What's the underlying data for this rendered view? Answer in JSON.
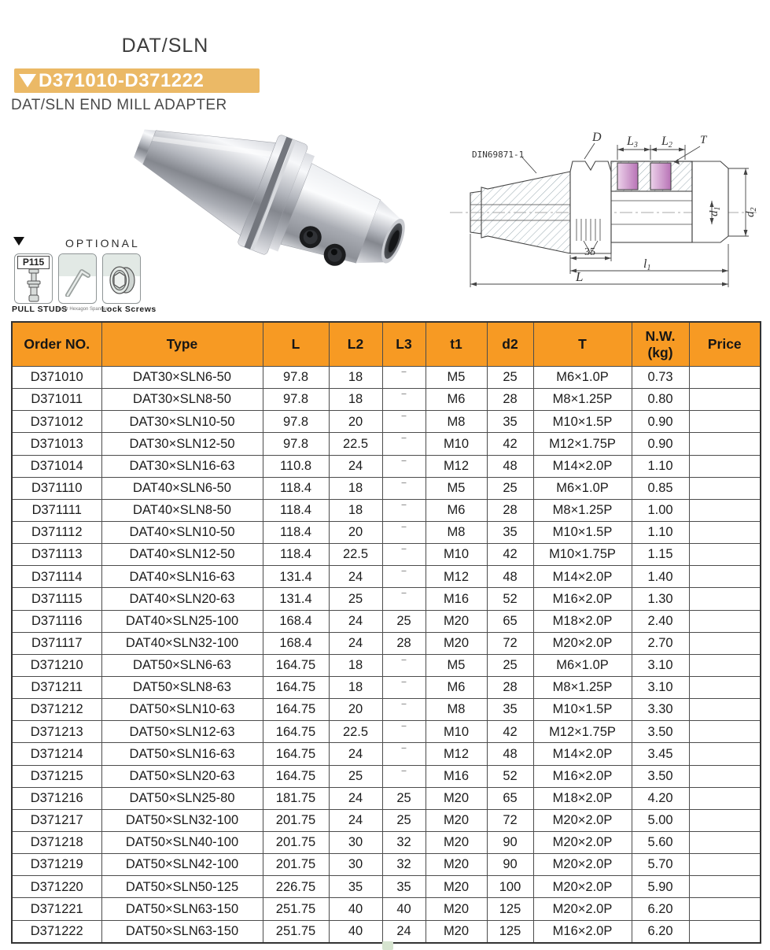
{
  "page": {
    "title": "DAT/SLN",
    "range_badge": "D371010-D371222",
    "subtitle": "DAT/SLN END MILL ADAPTER"
  },
  "optional": {
    "label": "OPTIONAL",
    "items": [
      {
        "code": "P115",
        "caption": "PULL  STUDS",
        "icon": "pull-stud-icon"
      },
      {
        "caption": "Inner Hexagon Spanner",
        "icon": "hex-wrench-icon"
      },
      {
        "caption": "Lock Screws",
        "icon": "lock-screw-icon"
      }
    ]
  },
  "diagram": {
    "standard": "DIN69871-1",
    "label_d": "D",
    "label_l3": {
      "base": "L",
      "sub": "3"
    },
    "label_l2": {
      "base": "L",
      "sub": "2"
    },
    "label_t": "T",
    "label_d1": {
      "base": "d",
      "sub": "1"
    },
    "label_d2": {
      "base": "d",
      "sub": "2"
    },
    "label_35": "35",
    "label_l1": {
      "base": "l",
      "sub": "1"
    },
    "label_l": "L"
  },
  "colors": {
    "header_orange": "#F79A23",
    "badge_orange": "#EBB966",
    "slot_pink": "#C283C0"
  },
  "table": {
    "columns": [
      "Order NO.",
      "Type",
      "L",
      "L2",
      "L3",
      "t1",
      "d2",
      "T",
      "N.W.\n(kg)",
      "Price"
    ],
    "column_keys": [
      "order-no",
      "type",
      "l",
      "l2",
      "l3",
      "t1",
      "d2",
      "t",
      "nw-kg",
      "price"
    ],
    "rows": [
      [
        "D371010",
        "DAT30×SLN6-50",
        "97.8",
        "18",
        "‾",
        "M5",
        "25",
        "M6×1.0P",
        "0.73",
        ""
      ],
      [
        "D371011",
        "DAT30×SLN8-50",
        "97.8",
        "18",
        "‾",
        "M6",
        "28",
        "M8×1.25P",
        "0.80",
        ""
      ],
      [
        "D371012",
        "DAT30×SLN10-50",
        "97.8",
        "20",
        "‾",
        "M8",
        "35",
        "M10×1.5P",
        "0.90",
        ""
      ],
      [
        "D371013",
        "DAT30×SLN12-50",
        "97.8",
        "22.5",
        "‾",
        "M10",
        "42",
        "M12×1.75P",
        "0.90",
        ""
      ],
      [
        "D371014",
        "DAT30×SLN16-63",
        "110.8",
        "24",
        "‾",
        "M12",
        "48",
        "M14×2.0P",
        "1.10",
        ""
      ],
      [
        "D371110",
        "DAT40×SLN6-50",
        "118.4",
        "18",
        "‾",
        "M5",
        "25",
        "M6×1.0P",
        "0.85",
        ""
      ],
      [
        "D371111",
        "DAT40×SLN8-50",
        "118.4",
        "18",
        "‾",
        "M6",
        "28",
        "M8×1.25P",
        "1.00",
        ""
      ],
      [
        "D371112",
        "DAT40×SLN10-50",
        "118.4",
        "20",
        "‾",
        "M8",
        "35",
        "M10×1.5P",
        "1.10",
        ""
      ],
      [
        "D371113",
        "DAT40×SLN12-50",
        "118.4",
        "22.5",
        "‾",
        "M10",
        "42",
        "M10×1.75P",
        "1.15",
        ""
      ],
      [
        "D371114",
        "DAT40×SLN16-63",
        "131.4",
        "24",
        "‾",
        "M12",
        "48",
        "M14×2.0P",
        "1.40",
        ""
      ],
      [
        "D371115",
        "DAT40×SLN20-63",
        "131.4",
        "25",
        "‾",
        "M16",
        "52",
        "M16×2.0P",
        "1.30",
        ""
      ],
      [
        "D371116",
        "DAT40×SLN25-100",
        "168.4",
        "24",
        "25",
        "M20",
        "65",
        "M18×2.0P",
        "2.40",
        ""
      ],
      [
        "D371117",
        "DAT40×SLN32-100",
        "168.4",
        "24",
        "28",
        "M20",
        "72",
        "M20×2.0P",
        "2.70",
        ""
      ],
      [
        "D371210",
        "DAT50×SLN6-63",
        "164.75",
        "18",
        "‾",
        "M5",
        "25",
        "M6×1.0P",
        "3.10",
        ""
      ],
      [
        "D371211",
        "DAT50×SLN8-63",
        "164.75",
        "18",
        "‾",
        "M6",
        "28",
        "M8×1.25P",
        "3.10",
        ""
      ],
      [
        "D371212",
        "DAT50×SLN10-63",
        "164.75",
        "20",
        "‾",
        "M8",
        "35",
        "M10×1.5P",
        "3.30",
        ""
      ],
      [
        "D371213",
        "DAT50×SLN12-63",
        "164.75",
        "22.5",
        "‾",
        "M10",
        "42",
        "M12×1.75P",
        "3.50",
        ""
      ],
      [
        "D371214",
        "DAT50×SLN16-63",
        "164.75",
        "24",
        "‾",
        "M12",
        "48",
        "M14×2.0P",
        "3.45",
        ""
      ],
      [
        "D371215",
        "DAT50×SLN20-63",
        "164.75",
        "25",
        "‾",
        "M16",
        "52",
        "M16×2.0P",
        "3.50",
        ""
      ],
      [
        "D371216",
        "DAT50×SLN25-80",
        "181.75",
        "24",
        "25",
        "M20",
        "65",
        "M18×2.0P",
        "4.20",
        ""
      ],
      [
        "D371217",
        "DAT50×SLN32-100",
        "201.75",
        "24",
        "25",
        "M20",
        "72",
        "M20×2.0P",
        "5.00",
        ""
      ],
      [
        "D371218",
        "DAT50×SLN40-100",
        "201.75",
        "30",
        "32",
        "M20",
        "90",
        "M20×2.0P",
        "5.60",
        ""
      ],
      [
        "D371219",
        "DAT50×SLN42-100",
        "201.75",
        "30",
        "32",
        "M20",
        "90",
        "M20×2.0P",
        "5.70",
        ""
      ],
      [
        "D371220",
        "DAT50×SLN50-125",
        "226.75",
        "35",
        "35",
        "M20",
        "100",
        "M20×2.0P",
        "5.90",
        ""
      ],
      [
        "D371221",
        "DAT50×SLN63-150",
        "251.75",
        "40",
        "40",
        "M20",
        "125",
        "M20×2.0P",
        "6.20",
        ""
      ],
      [
        "D371222",
        "DAT50×SLN63-150",
        "251.75",
        "40",
        "24",
        "M20",
        "125",
        "M16×2.0P",
        "6.20",
        ""
      ]
    ]
  }
}
